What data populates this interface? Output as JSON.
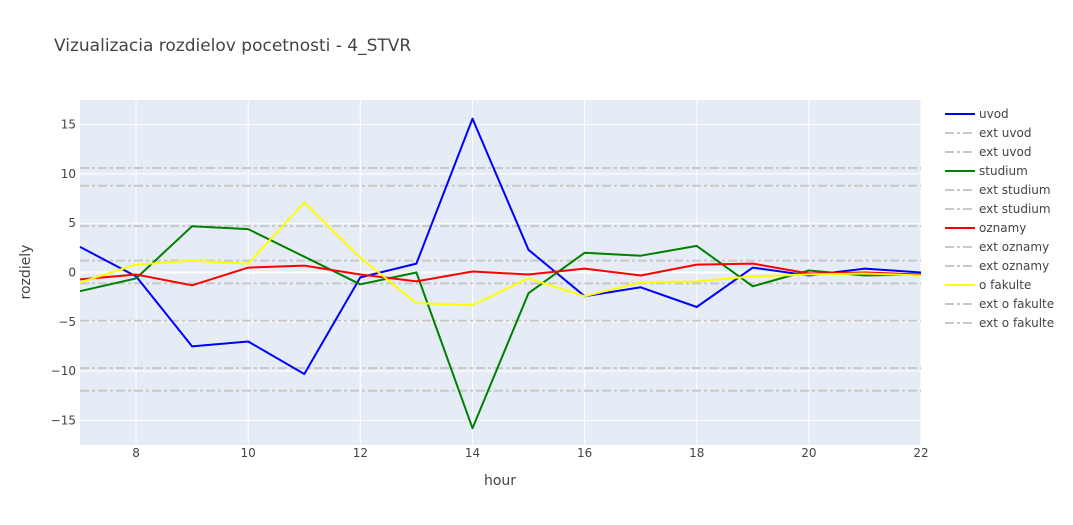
{
  "chart_data": {
    "type": "line",
    "title": "Vizualizacia rozdielov pocetnosti - 4_STVR",
    "xlabel": "hour",
    "ylabel": "rozdiely",
    "xlim": [
      7,
      22
    ],
    "ylim": [
      -17.5,
      17.5
    ],
    "x_ticks": [
      8,
      10,
      12,
      14,
      16,
      18,
      20,
      22
    ],
    "y_ticks": [
      -15,
      -10,
      -5,
      0,
      5,
      10,
      15
    ],
    "grid": true,
    "plot_background": "#e5ecf6",
    "legend_position": "right",
    "x": [
      7,
      8,
      9,
      10,
      11,
      12,
      13,
      14,
      15,
      16,
      17,
      18,
      19,
      20,
      21,
      22
    ],
    "series": [
      {
        "name": "uvod",
        "color": "#0000ff",
        "style": "solid",
        "values": [
          2.6,
          -0.4,
          -7.5,
          -7.0,
          -10.3,
          -0.5,
          0.9,
          15.6,
          2.3,
          -2.4,
          -1.5,
          -3.5,
          0.5,
          -0.3,
          0.4,
          0.0
        ]
      },
      {
        "name": "ext uvod",
        "color": "#c8c8c8",
        "style": "dashdot",
        "constant": 10.6
      },
      {
        "name": "ext uvod",
        "color": "#c8c8c8",
        "style": "dashdot",
        "constant": -12.0
      },
      {
        "name": "studium",
        "color": "#008000",
        "style": "solid",
        "values": [
          -1.9,
          -0.6,
          4.7,
          4.4,
          1.6,
          -1.2,
          0.0,
          -15.8,
          -2.1,
          2.0,
          1.7,
          2.7,
          -1.4,
          0.2,
          -0.3,
          -0.2
        ]
      },
      {
        "name": "ext studium",
        "color": "#c8c8c8",
        "style": "dashdot",
        "constant": 8.8
      },
      {
        "name": "ext studium",
        "color": "#c8c8c8",
        "style": "dashdot",
        "constant": -9.7
      },
      {
        "name": "oznamy",
        "color": "#ff0000",
        "style": "solid",
        "values": [
          -0.7,
          -0.2,
          -1.3,
          0.5,
          0.7,
          -0.2,
          -0.9,
          0.1,
          -0.2,
          0.4,
          -0.3,
          0.8,
          0.9,
          -0.1,
          0.0,
          -0.2
        ]
      },
      {
        "name": "ext oznamy",
        "color": "#c8c8c8",
        "style": "dashdot",
        "constant": 1.2
      },
      {
        "name": "ext oznamy",
        "color": "#c8c8c8",
        "style": "dashdot",
        "constant": -1.1
      },
      {
        "name": "o fakulte",
        "color": "#ffff00",
        "style": "solid",
        "values": [
          -1.0,
          0.8,
          1.2,
          0.9,
          7.1,
          1.5,
          -3.1,
          -3.3,
          -0.6,
          -2.4,
          -1.0,
          -0.9,
          -0.4,
          -0.2,
          -0.1,
          -0.3
        ]
      },
      {
        "name": "ext o fakulte",
        "color": "#c8c8c8",
        "style": "dashdot",
        "constant": 4.7
      },
      {
        "name": "ext o fakulte",
        "color": "#c8c8c8",
        "style": "dashdot",
        "constant": -4.9
      }
    ]
  }
}
